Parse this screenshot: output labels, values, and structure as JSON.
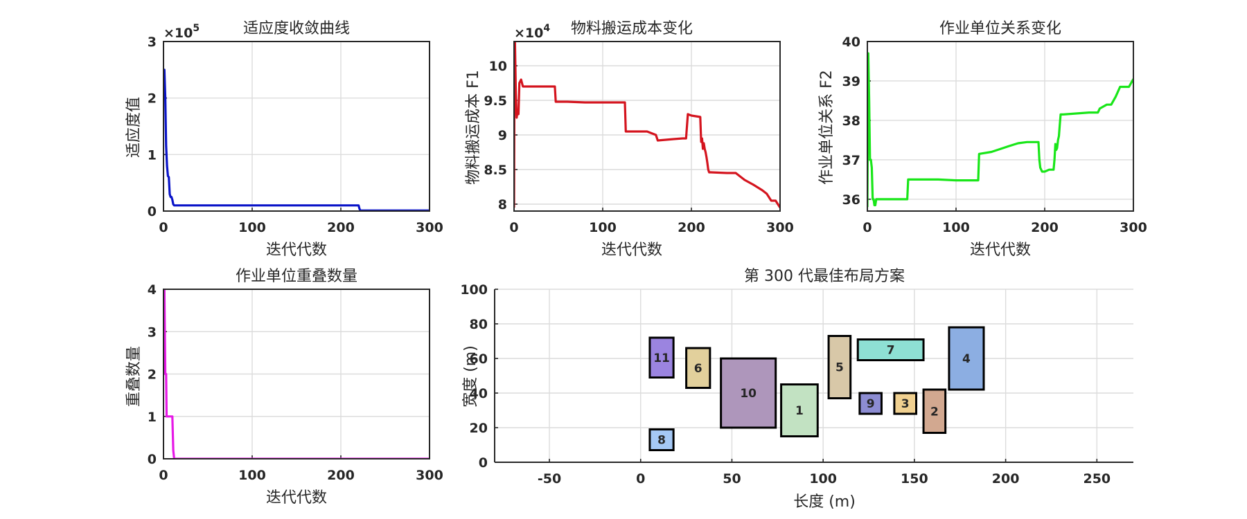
{
  "chart_data": [
    {
      "id": "fitness",
      "type": "line",
      "title": "适应度收敛曲线",
      "xlabel": "迭代代数",
      "ylabel": "适应度值",
      "exponent_label": "×10",
      "exponent_power": "5",
      "xlim": [
        0,
        300
      ],
      "ylim": [
        0,
        3
      ],
      "xticks": [
        0,
        100,
        200,
        300
      ],
      "yticks": [
        0,
        1,
        2,
        3
      ],
      "grid": true,
      "color": "#0a14c8",
      "series": [
        {
          "x": [
            0,
            1,
            2,
            3,
            4,
            5,
            6,
            7,
            8,
            9,
            10,
            11,
            12,
            15,
            20,
            50,
            100,
            150,
            200,
            220,
            221,
            222,
            250,
            300
          ],
          "values": [
            2.5,
            2.5,
            2.0,
            1.15,
            0.8,
            0.62,
            0.6,
            0.3,
            0.25,
            0.25,
            0.2,
            0.12,
            0.1,
            0.1,
            0.1,
            0.1,
            0.1,
            0.1,
            0.1,
            0.1,
            0.04,
            0.01,
            0.01,
            0.01
          ]
        }
      ]
    },
    {
      "id": "cost",
      "type": "line",
      "title": "物料搬运成本变化",
      "xlabel": "迭代代数",
      "ylabel": "物料搬运成本 F1",
      "exponent_label": "×10",
      "exponent_power": "4",
      "xlim": [
        0,
        300
      ],
      "ylim": [
        7.9,
        10.35
      ],
      "xticks": [
        0,
        100,
        200,
        300
      ],
      "yticks": [
        8,
        8.5,
        9,
        9.5,
        10
      ],
      "grid": true,
      "color": "#d4141e",
      "series": [
        {
          "x": [
            0,
            0.5,
            1,
            2,
            3,
            4,
            5,
            6,
            8,
            10,
            12,
            15,
            20,
            46,
            47,
            60,
            80,
            100,
            125,
            126,
            127,
            150,
            160,
            162,
            180,
            190,
            194,
            196,
            200,
            210,
            211,
            212,
            213,
            214,
            215,
            216,
            217,
            218,
            219,
            220,
            221,
            222,
            240,
            250,
            260,
            270,
            280,
            285,
            290,
            295,
            300
          ],
          "values": [
            7.95,
            9.9,
            10.35,
            9.6,
            9.25,
            9.35,
            9.3,
            9.75,
            9.8,
            9.7,
            9.7,
            9.7,
            9.7,
            9.7,
            9.48,
            9.48,
            9.47,
            9.47,
            9.47,
            9.05,
            9.05,
            9.05,
            9.0,
            8.92,
            8.94,
            8.95,
            8.95,
            9.3,
            9.28,
            9.26,
            8.9,
            8.95,
            8.8,
            8.88,
            8.8,
            8.75,
            8.68,
            8.6,
            8.5,
            8.46,
            8.46,
            8.46,
            8.45,
            8.45,
            8.35,
            8.28,
            8.2,
            8.15,
            8.05,
            8.05,
            7.95
          ]
        }
      ]
    },
    {
      "id": "relation",
      "type": "line",
      "title": "作业单位关系变化",
      "xlabel": "迭代代数",
      "ylabel": "作业单位关系 F2",
      "xlim": [
        0,
        300
      ],
      "ylim": [
        35.7,
        40
      ],
      "xticks": [
        0,
        100,
        200,
        300
      ],
      "yticks": [
        36,
        37,
        38,
        39,
        40
      ],
      "grid": true,
      "color": "#19e619",
      "series": [
        {
          "x": [
            0,
            1,
            2,
            3,
            4,
            5,
            6,
            7,
            8,
            9,
            10,
            12,
            15,
            45,
            46,
            80,
            100,
            125,
            126,
            140,
            160,
            170,
            180,
            193,
            194,
            195,
            197,
            200,
            205,
            210,
            211,
            212,
            213,
            214,
            215,
            216,
            217,
            218,
            219,
            220,
            221,
            250,
            260,
            262,
            270,
            275,
            280,
            285,
            290,
            295,
            300
          ],
          "values": [
            35.8,
            39.7,
            38.5,
            37.0,
            37.0,
            36.8,
            36.0,
            36.0,
            35.85,
            35.85,
            36.0,
            36.0,
            36.0,
            36.0,
            36.5,
            36.5,
            36.48,
            36.48,
            37.15,
            37.2,
            37.35,
            37.42,
            37.45,
            37.45,
            37.0,
            36.8,
            36.7,
            36.7,
            36.75,
            36.75,
            37.0,
            37.4,
            37.25,
            37.3,
            37.5,
            37.6,
            37.9,
            38.15,
            38.15,
            38.15,
            38.15,
            38.2,
            38.2,
            38.3,
            38.4,
            38.4,
            38.6,
            38.85,
            38.85,
            38.85,
            39.05
          ]
        }
      ]
    },
    {
      "id": "overlap",
      "type": "line",
      "title": "作业单位重叠数量",
      "xlabel": "迭代代数",
      "ylabel": "重叠数量",
      "xlim": [
        0,
        300
      ],
      "ylim": [
        0,
        4
      ],
      "xticks": [
        0,
        100,
        200,
        300
      ],
      "yticks": [
        0,
        1,
        2,
        3,
        4
      ],
      "grid": true,
      "color": "#e619e6",
      "series": [
        {
          "x": [
            0,
            1,
            2,
            3,
            3.5,
            4,
            9,
            10,
            11,
            12,
            300
          ],
          "values": [
            4,
            4,
            2,
            2,
            1,
            1,
            1,
            1,
            0.2,
            0,
            0
          ]
        }
      ]
    },
    {
      "id": "layout",
      "type": "rect-layout",
      "title": "第 300 代最佳布局方案",
      "xlabel": "长度 (m)",
      "ylabel": "宽度 (m)",
      "xlim": [
        -80,
        270
      ],
      "ylim": [
        0,
        100
      ],
      "xticks": [
        -50,
        0,
        50,
        100,
        150,
        200,
        250
      ],
      "yticks": [
        0,
        20,
        40,
        60,
        80,
        100
      ],
      "grid": true,
      "units": [
        {
          "label": "11",
          "x0": 5,
          "x1": 18,
          "y0": 49,
          "y1": 72,
          "color": "#9b84e0"
        },
        {
          "label": "6",
          "x0": 25,
          "x1": 38,
          "y0": 43,
          "y1": 66,
          "color": "#e2d09c"
        },
        {
          "label": "10",
          "x0": 44,
          "x1": 74,
          "y0": 20,
          "y1": 60,
          "color": "#ae96bb"
        },
        {
          "label": "1",
          "x0": 77,
          "x1": 97,
          "y0": 15,
          "y1": 45,
          "color": "#c2e2c2"
        },
        {
          "label": "8",
          "x0": 5,
          "x1": 18,
          "y0": 7,
          "y1": 19,
          "color": "#a5c8f5"
        },
        {
          "label": "5",
          "x0": 103,
          "x1": 115,
          "y0": 37,
          "y1": 73,
          "color": "#d8c8a8"
        },
        {
          "label": "7",
          "x0": 119,
          "x1": 155,
          "y0": 59,
          "y1": 71,
          "color": "#8ee0d4"
        },
        {
          "label": "9",
          "x0": 120,
          "x1": 132,
          "y0": 28,
          "y1": 40,
          "color": "#8c8cd2"
        },
        {
          "label": "3",
          "x0": 139,
          "x1": 151,
          "y0": 28,
          "y1": 40,
          "color": "#f0d090"
        },
        {
          "label": "2",
          "x0": 155,
          "x1": 167,
          "y0": 17,
          "y1": 42,
          "color": "#d2a890"
        },
        {
          "label": "4",
          "x0": 169,
          "x1": 188,
          "y0": 42,
          "y1": 78,
          "color": "#8caee2"
        }
      ]
    }
  ]
}
